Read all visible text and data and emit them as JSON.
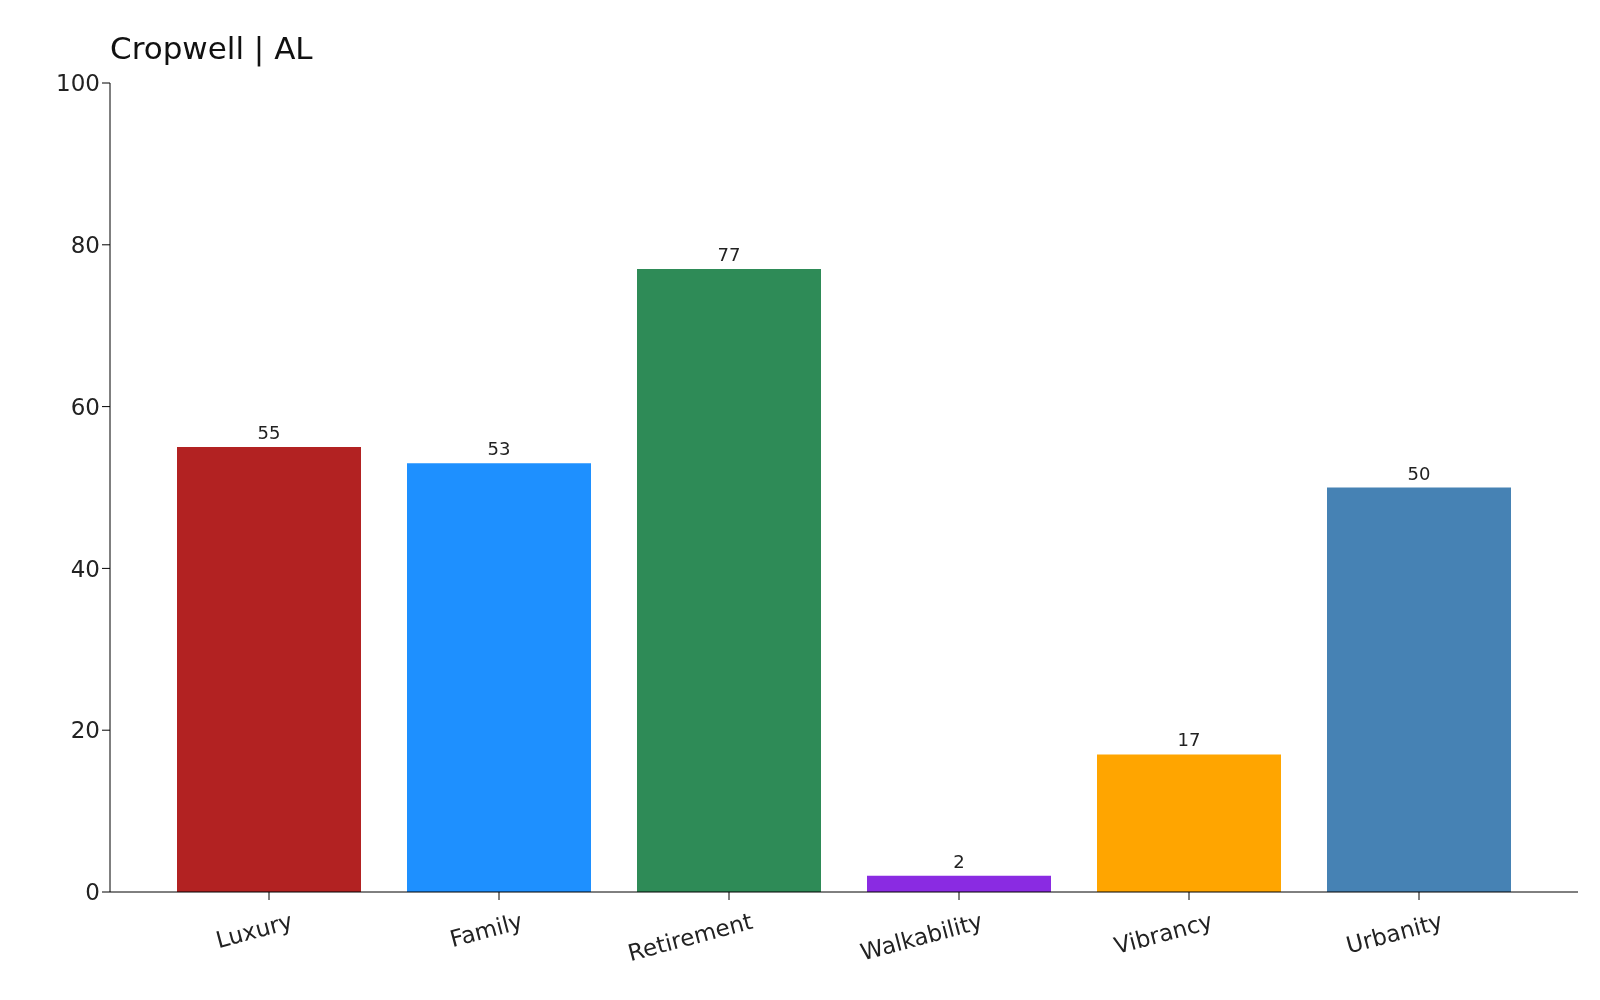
{
  "chart_data": {
    "type": "bar",
    "title": "Cropwell | AL",
    "categories": [
      "Luxury",
      "Family",
      "Retirement",
      "Walkability",
      "Vibrancy",
      "Urbanity"
    ],
    "values": [
      55,
      53,
      77,
      2,
      17,
      50
    ],
    "colors": [
      "#b22222",
      "#1e90ff",
      "#2e8b57",
      "#8a2be2",
      "#ffa500",
      "#4682b4"
    ],
    "ylim": [
      0,
      100
    ],
    "yticks": [
      0,
      20,
      40,
      60,
      80,
      100
    ],
    "grid": false,
    "data_labels": true
  }
}
